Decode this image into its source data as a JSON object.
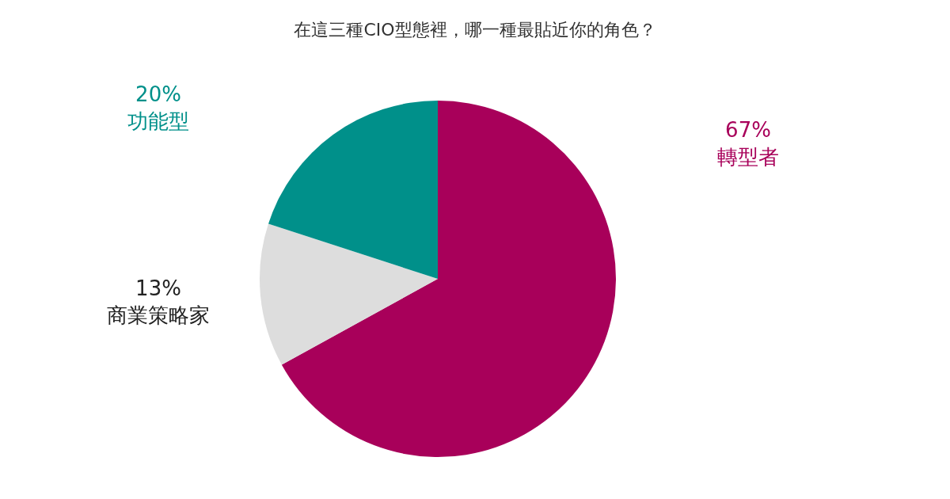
{
  "chart_data": {
    "type": "pie",
    "title": "在這三種CIO型態裡，哪一種最貼近你的角色？",
    "categories": [
      "轉型者",
      "商業策略家",
      "功能型"
    ],
    "values": [
      67,
      13,
      20
    ],
    "colors": [
      "#a8005a",
      "#dddddd",
      "#00908a"
    ],
    "data_labels": true,
    "value_labels": [
      "67%",
      "13%",
      "20%"
    ]
  }
}
